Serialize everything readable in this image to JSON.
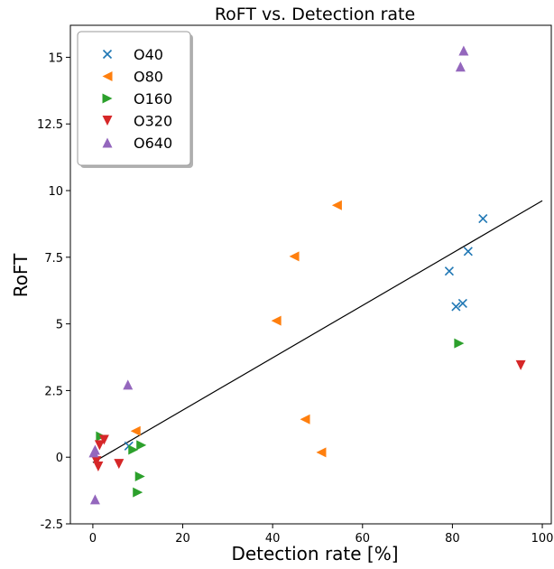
{
  "chart_data": {
    "type": "scatter",
    "title": "RoFT vs. Detection rate",
    "xlabel": "Detection rate [%]",
    "ylabel": "RoFT",
    "xlim": [
      -5,
      102
    ],
    "ylim": [
      -2.5,
      16.2
    ],
    "xticks": [
      0,
      20,
      40,
      60,
      80,
      100
    ],
    "xtick_labels": [
      "0",
      "20",
      "40",
      "60",
      "80",
      "100"
    ],
    "yticks": [
      -2.5,
      0,
      2.5,
      5,
      7.5,
      10,
      12.5,
      15
    ],
    "ytick_labels": [
      "-2.5",
      "0",
      "2.5",
      "5",
      "7.5",
      "10",
      "12.5",
      "15"
    ],
    "grid": false,
    "legend_position": "top-left",
    "series": [
      {
        "name": "O40",
        "marker": "x",
        "color": "#1f77b4",
        "points": [
          [
            86.8,
            8.95
          ],
          [
            83.5,
            7.72
          ],
          [
            79.3,
            6.98
          ],
          [
            80.8,
            5.65
          ],
          [
            82.3,
            5.77
          ],
          [
            8.0,
            0.42
          ]
        ]
      },
      {
        "name": "O80",
        "marker": "triangle-left",
        "color": "#ff7f0e",
        "points": [
          [
            54.3,
            9.45
          ],
          [
            44.8,
            7.53
          ],
          [
            40.8,
            5.12
          ],
          [
            47.2,
            1.42
          ],
          [
            50.8,
            0.18
          ],
          [
            9.5,
            0.98
          ]
        ]
      },
      {
        "name": "O160",
        "marker": "triangle-right",
        "color": "#2ca02c",
        "points": [
          [
            81.5,
            4.27
          ],
          [
            1.8,
            0.78
          ],
          [
            9.0,
            0.28
          ],
          [
            10.8,
            0.45
          ],
          [
            10.5,
            -0.72
          ],
          [
            10.0,
            -1.32
          ]
        ]
      },
      {
        "name": "O320",
        "marker": "triangle-down",
        "color": "#d62728",
        "points": [
          [
            95.2,
            3.45
          ],
          [
            2.5,
            0.65
          ],
          [
            1.5,
            0.45
          ],
          [
            0.8,
            -0.15
          ],
          [
            1.2,
            -0.35
          ],
          [
            5.8,
            -0.25
          ]
        ]
      },
      {
        "name": "O640",
        "marker": "triangle-up",
        "color": "#9467bd",
        "points": [
          [
            82.5,
            15.25
          ],
          [
            81.8,
            14.65
          ],
          [
            7.8,
            2.72
          ],
          [
            0.5,
            0.28
          ],
          [
            0.2,
            0.18
          ],
          [
            0.5,
            -1.58
          ]
        ]
      }
    ],
    "fit_line": {
      "x": [
        0,
        100
      ],
      "y": [
        -0.2,
        9.62
      ],
      "color": "#000000"
    }
  }
}
